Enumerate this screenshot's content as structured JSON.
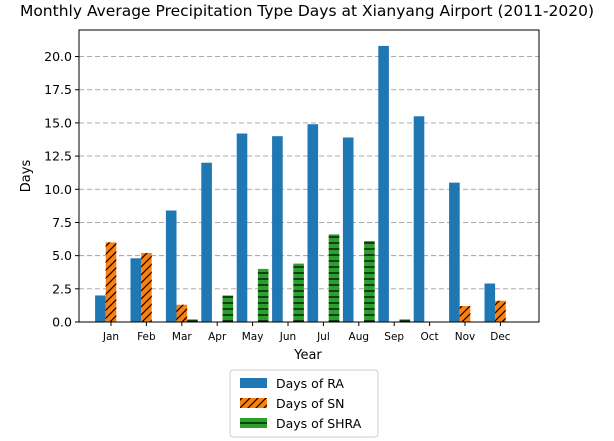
{
  "chart_data": {
    "type": "bar",
    "title": "Monthly Average Precipitation Type Days at Xianyang Airport (2011-2020)",
    "xlabel": "Year",
    "ylabel": "Days",
    "ylim": [
      0,
      22.0
    ],
    "yticks": [
      0.0,
      2.5,
      5.0,
      7.5,
      10.0,
      12.5,
      15.0,
      17.5,
      20.0
    ],
    "ytick_labels": [
      "0.0",
      "2.5",
      "5.0",
      "7.5",
      "10.0",
      "12.5",
      "15.0",
      "17.5",
      "20.0"
    ],
    "grid": "horizontal dashed",
    "legend_position": "below plot",
    "categories": [
      "Jan",
      "Feb",
      "Mar",
      "Apr",
      "May",
      "Jun",
      "Jul",
      "Aug",
      "Sep",
      "Oct",
      "Nov",
      "Dec"
    ],
    "series": [
      {
        "name": "Days of RA",
        "color": "#1f77b4",
        "hatch": "none",
        "values": [
          2.0,
          4.8,
          8.4,
          12.0,
          14.2,
          14.0,
          14.9,
          13.9,
          20.8,
          15.5,
          10.5,
          2.9
        ]
      },
      {
        "name": "Days of SN",
        "color": "#ff7f0e",
        "hatch": "diagonal",
        "values": [
          6.0,
          5.2,
          1.3,
          0.0,
          0.0,
          0.0,
          0.0,
          0.0,
          0.0,
          0.0,
          1.2,
          1.6
        ]
      },
      {
        "name": "Days of SHRA",
        "color": "#2ca02c",
        "hatch": "horizontal",
        "values": [
          0.0,
          0.0,
          0.2,
          2.0,
          4.0,
          4.4,
          6.6,
          6.1,
          0.2,
          0.0,
          0.0,
          0.0
        ]
      }
    ]
  }
}
